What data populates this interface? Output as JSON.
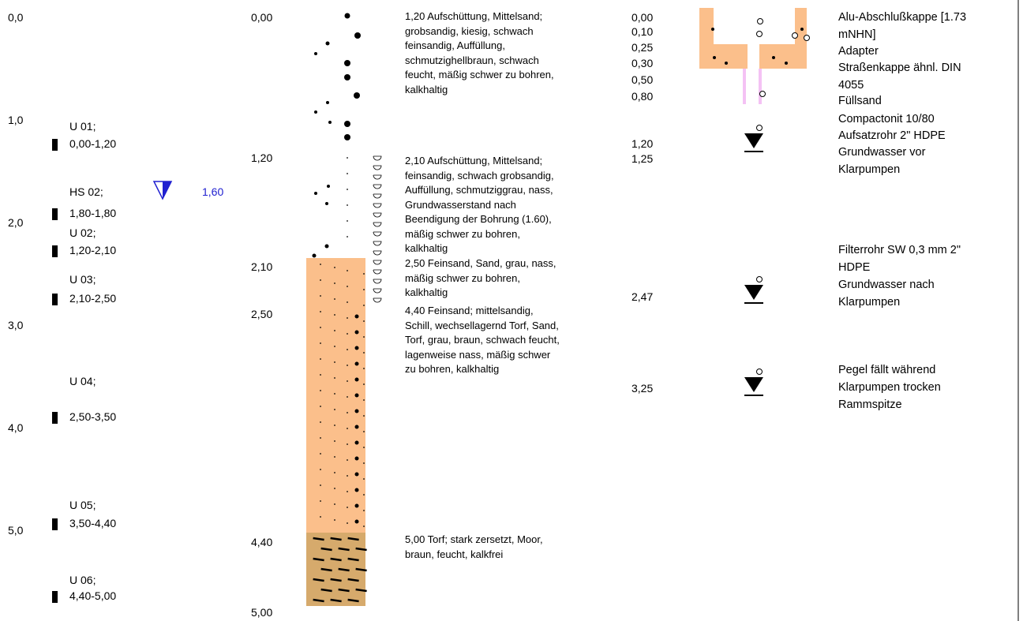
{
  "depth_scale": [
    "0,0",
    "1,0",
    "2,0",
    "3,0",
    "4,0",
    "5,0"
  ],
  "samples": [
    {
      "label": "U 01;",
      "range": "0,00-1,20"
    },
    {
      "label": "HS 02;",
      "range": "1,80-1,80"
    },
    {
      "label": "U 02;",
      "range": "1,20-2,10"
    },
    {
      "label": "U 03;",
      "range": "2,10-2,50"
    },
    {
      "label": "U 04;",
      "range": "2,50-3,50"
    },
    {
      "label": "U 05;",
      "range": "3,50-4,40"
    },
    {
      "label": "U 06;",
      "range": "4,40-5,00"
    }
  ],
  "water_level": "1,60",
  "layer_depths": [
    "0,00",
    "1,20",
    "2,10",
    "2,50",
    "4,40",
    "5,00"
  ],
  "layer_descriptions": [
    [
      "1,20  Aufschüttung, Mittelsand;",
      "grobsandig, kiesig, schwach",
      "feinsandig, Auffüllung,",
      "schmutzighellbraun, schwach",
      "feucht, mäßig schwer zu bohren,",
      "kalkhaltig"
    ],
    [
      "2,10  Aufschüttung, Mittelsand;",
      "feinsandig, schwach grobsandig,",
      "Auffüllung, schmutziggrau, nass,",
      "Grundwasserstand nach",
      "Beendigung der Bohrung (1.60),",
      "mäßig schwer zu bohren,",
      "kalkhaltig"
    ],
    [
      "2,50  Feinsand, Sand, grau, nass,",
      "mäßig schwer zu bohren,",
      "kalkhaltig"
    ],
    [
      "4,40  Feinsand; mittelsandig,",
      "Schill, wechsellagernd Torf, Sand,",
      "Torf, grau, braun, schwach feucht,",
      "lagenweise nass, mäßig schwer",
      "zu bohren, kalkhaltig"
    ],
    [
      "5,00  Torf; stark zersetzt, Moor,",
      "braun, feucht, kalkfrei"
    ]
  ],
  "well_depths": [
    "0,00",
    "0,10",
    "0,25",
    "0,30",
    "0,50",
    "0,80",
    "1,20",
    "1,25",
    "2,47",
    "3,25"
  ],
  "well_labels": [
    [
      "Alu-Abschlußkappe [1.73",
      "mNHN]"
    ],
    [
      "Adapter"
    ],
    [
      "Straßenkappe ähnl. DIN",
      "4055"
    ],
    [
      "Füllsand"
    ],
    [
      "Compactonit 10/80"
    ],
    [
      "Aufsatzrohr 2\" HDPE"
    ],
    [
      "Grundwasser vor",
      "Klarpumpen"
    ],
    [
      "Filterrohr SW 0,3 mm 2\"",
      "HDPE"
    ],
    [
      "Grundwasser nach",
      "Klarpumpen"
    ],
    [
      "Pegel fällt während",
      "Klarpumpen trocken"
    ],
    [
      "Rammspitze"
    ]
  ]
}
